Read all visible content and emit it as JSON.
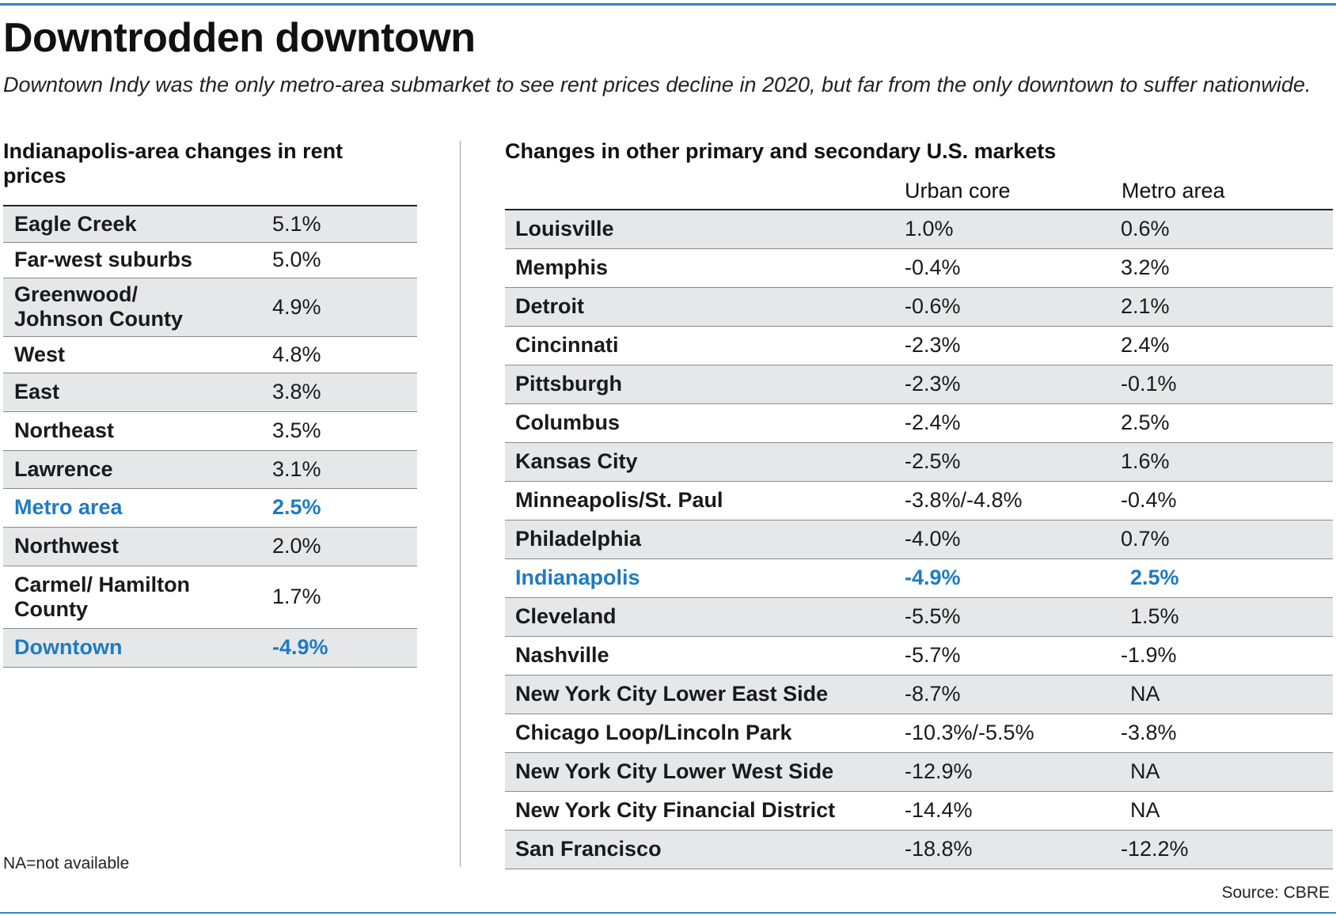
{
  "title": "Downtrodden downtown",
  "subtitle": "Downtown Indy was the only metro-area submarket to see rent prices decline in 2020, but far from the only downtown to suffer nationwide.",
  "left": {
    "heading": "Indianapolis-area changes in rent prices",
    "rows": [
      {
        "name": "Eagle Creek",
        "value": "5.1%"
      },
      {
        "name": "Far-west suburbs",
        "value": "5.0%"
      },
      {
        "name": "Greenwood/ Johnson County",
        "value": "4.9%"
      },
      {
        "name": "West",
        "value": "4.8%"
      },
      {
        "name": "East",
        "value": "3.8%"
      },
      {
        "name": "Northeast",
        "value": "3.5%"
      },
      {
        "name": "Lawrence",
        "value": "3.1%"
      },
      {
        "name": "Metro area",
        "value": "2.5%"
      },
      {
        "name": "Northwest",
        "value": "2.0%"
      },
      {
        "name": "Carmel/ Hamilton County",
        "value": "1.7%"
      },
      {
        "name": "Downtown",
        "value": "-4.9%"
      }
    ]
  },
  "right": {
    "heading": "Changes in other primary and secondary U.S. markets",
    "col_urban": "Urban core",
    "col_metro": "Metro area",
    "rows": [
      {
        "name": "Louisville",
        "urban": "1.0%",
        "metro": "0.6%"
      },
      {
        "name": "Memphis",
        "urban": "-0.4%",
        "metro": "3.2%"
      },
      {
        "name": "Detroit",
        "urban": "-0.6%",
        "metro": "2.1%"
      },
      {
        "name": "Cincinnati",
        "urban": "-2.3%",
        "metro": "2.4%"
      },
      {
        "name": "Pittsburgh",
        "urban": "-2.3%",
        "metro": "-0.1%"
      },
      {
        "name": "Columbus",
        "urban": "-2.4%",
        "metro": "2.5%"
      },
      {
        "name": "Kansas City",
        "urban": "-2.5%",
        "metro": "1.6%"
      },
      {
        "name": "Minneapolis/St. Paul",
        "urban": "-3.8%/-4.8%",
        "metro": "-0.4%"
      },
      {
        "name": "Philadelphia",
        "urban": "-4.0%",
        "metro": "0.7%"
      },
      {
        "name": "Indianapolis",
        "urban": "-4.9%",
        "metro": "2.5%"
      },
      {
        "name": "Cleveland",
        "urban": "-5.5%",
        "metro": "1.5%"
      },
      {
        "name": "Nashville",
        "urban": "-5.7%",
        "metro": "-1.9%"
      },
      {
        "name": "New York City Lower East Side",
        "urban": "-8.7%",
        "metro": "NA"
      },
      {
        "name": "Chicago Loop/Lincoln Park",
        "urban": "-10.3%/-5.5%",
        "metro": "-3.8%"
      },
      {
        "name": "New York City Lower West Side",
        "urban": "-12.9%",
        "metro": "NA"
      },
      {
        "name": "New York City Financial District",
        "urban": "-14.4%",
        "metro": "NA"
      },
      {
        "name": "San Francisco",
        "urban": "-18.8%",
        "metro": "-12.2%"
      }
    ]
  },
  "note": "NA=not available",
  "source": "Source: CBRE",
  "colors": {
    "accent": "#2f86c5",
    "highlight_text": "#1f7bc1",
    "row_shade": "#e6e7e9"
  }
}
